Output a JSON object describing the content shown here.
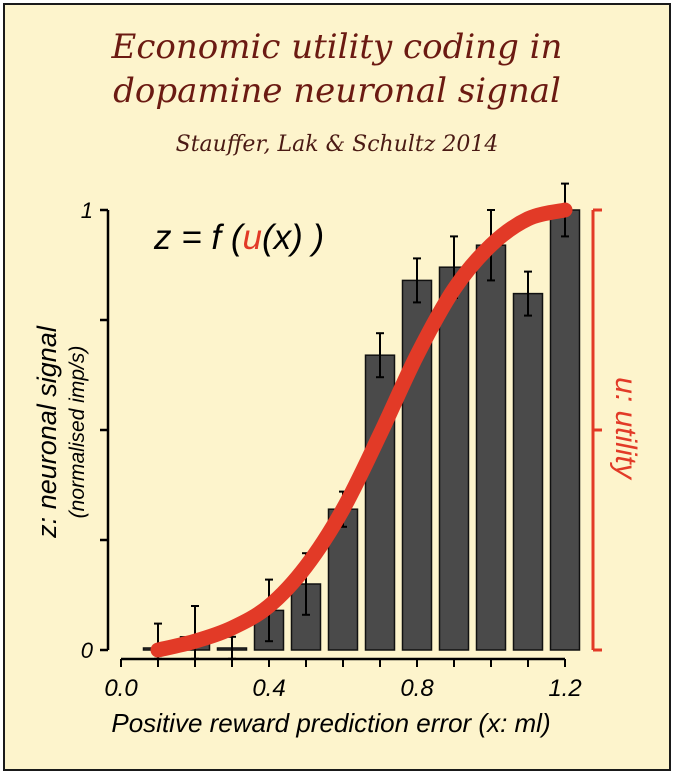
{
  "title_line1": "Economic utility coding in",
  "title_line2": "dopamine neuronal signal",
  "subtitle": "Stauffer, Lak & Schultz 2014",
  "colors": {
    "background": "#fdf4cc",
    "bar_fill": "#4a4a4a",
    "curve": "#e23a27",
    "title": "#6b1a12",
    "text": "#000000"
  },
  "chart_data": {
    "type": "bar",
    "equation": {
      "prefix": "z = f (",
      "u": "u",
      "middle": "(x) )"
    },
    "xlabel": "Positive reward prediction error (x: ml)",
    "ylabel": "z: neuronal signal",
    "ylabel_sub": "(normalised imp/s)",
    "right_axis_label": "u: utility",
    "xlim": [
      0.0,
      1.25
    ],
    "ylim": [
      0,
      1
    ],
    "x_ticks": [
      "0.0",
      "0.4",
      "0.8",
      "1.2"
    ],
    "x_tick_values": [
      0.0,
      0.4,
      0.8,
      1.2
    ],
    "y_ticks": [
      "0",
      "1"
    ],
    "y_tick_values": [
      0,
      1
    ],
    "y_minor_ticks": [
      0.25,
      0.5,
      0.75
    ],
    "x": [
      0.1,
      0.2,
      0.3,
      0.4,
      0.5,
      0.6,
      0.7,
      0.8,
      0.9,
      1.0,
      1.1,
      1.2
    ],
    "values": [
      0.0,
      0.03,
      0.0,
      0.09,
      0.15,
      0.32,
      0.67,
      0.84,
      0.87,
      0.92,
      0.81,
      1.0
    ],
    "errors": [
      0.06,
      0.07,
      0.03,
      0.07,
      0.07,
      0.04,
      0.05,
      0.05,
      0.07,
      0.08,
      0.05,
      0.06
    ],
    "curve_x": [
      0.1,
      0.2,
      0.3,
      0.4,
      0.5,
      0.6,
      0.7,
      0.8,
      0.9,
      1.0,
      1.1,
      1.2
    ],
    "curve_y": [
      0.0,
      0.02,
      0.05,
      0.1,
      0.19,
      0.32,
      0.49,
      0.67,
      0.82,
      0.92,
      0.98,
      1.0
    ]
  }
}
